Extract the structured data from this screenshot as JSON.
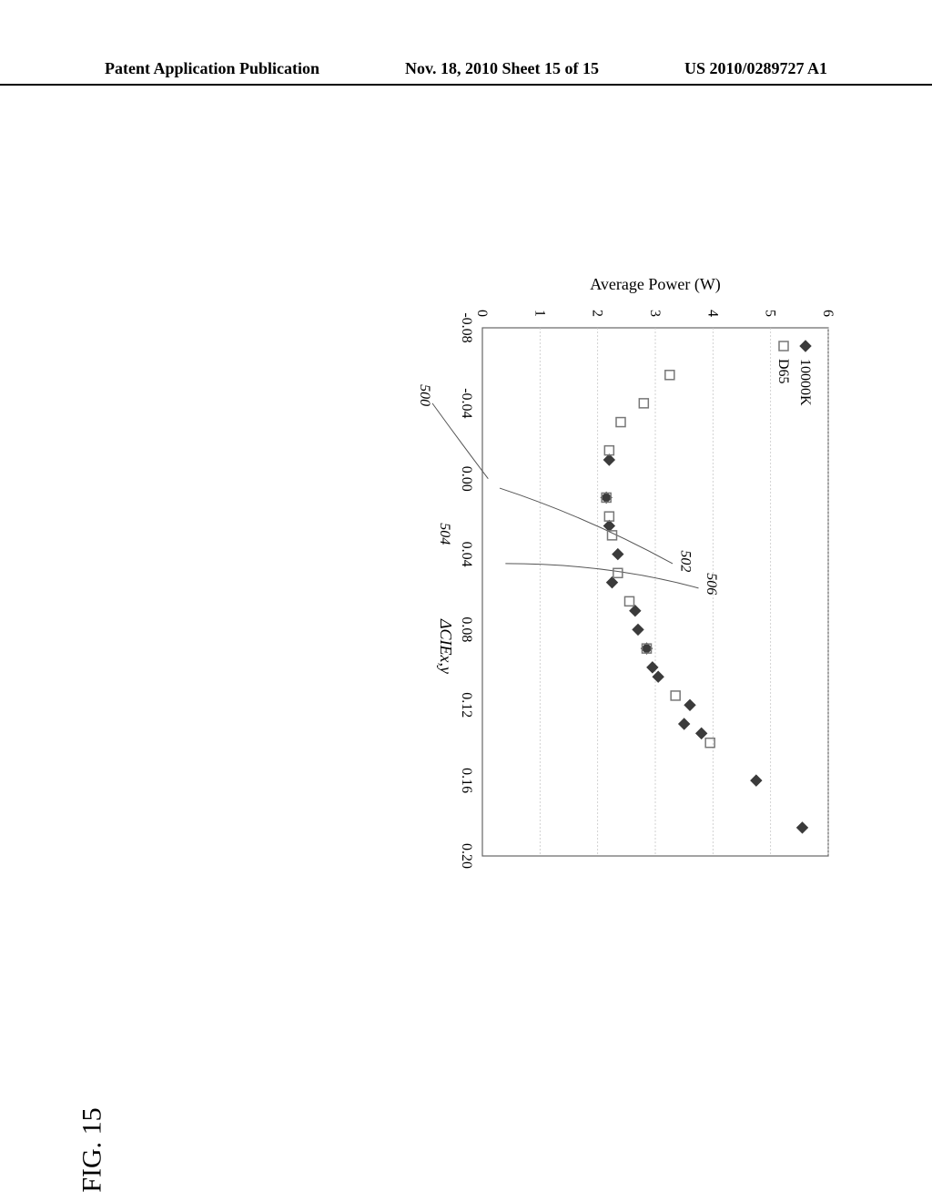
{
  "header": {
    "left": "Patent Application Publication",
    "center": "Nov. 18, 2010  Sheet 15 of 15",
    "right": "US 2010/0289727 A1"
  },
  "figure_label": "FIG. 15",
  "chart": {
    "type": "scatter",
    "xlabel": "ΔCIEx,y",
    "ylabel": "Average Power (W)",
    "xlim": [
      -0.08,
      0.2
    ],
    "ylim": [
      0,
      6
    ],
    "xticks": [
      -0.08,
      -0.04,
      0.0,
      0.04,
      0.08,
      0.12,
      0.16,
      0.2
    ],
    "yticks": [
      0,
      1,
      2,
      3,
      4,
      5,
      6
    ],
    "background_color": "#ffffff",
    "grid_color": "#c7c7c7",
    "border_color": "#666666",
    "tick_fontsize": 16,
    "label_fontsize": 18,
    "series": [
      {
        "name": "10000K",
        "marker": "diamond",
        "color": "#3b3b3b",
        "points": [
          [
            -0.01,
            2.2
          ],
          [
            0.01,
            2.15
          ],
          [
            0.025,
            2.2
          ],
          [
            0.04,
            2.35
          ],
          [
            0.055,
            2.25
          ],
          [
            0.07,
            2.65
          ],
          [
            0.08,
            2.7
          ],
          [
            0.09,
            2.85
          ],
          [
            0.1,
            2.95
          ],
          [
            0.105,
            3.05
          ],
          [
            0.12,
            3.6
          ],
          [
            0.13,
            3.5
          ],
          [
            0.135,
            3.8
          ],
          [
            0.16,
            4.75
          ],
          [
            0.185,
            5.55
          ]
        ]
      },
      {
        "name": "D65",
        "marker": "square",
        "color": "#777777",
        "points": [
          [
            -0.055,
            3.25
          ],
          [
            -0.04,
            2.8
          ],
          [
            -0.03,
            2.4
          ],
          [
            -0.015,
            2.2
          ],
          [
            0.01,
            2.15
          ],
          [
            0.02,
            2.2
          ],
          [
            0.03,
            2.25
          ],
          [
            0.05,
            2.35
          ],
          [
            0.065,
            2.55
          ],
          [
            0.09,
            2.85
          ],
          [
            0.115,
            3.35
          ],
          [
            0.14,
            3.95
          ]
        ]
      }
    ],
    "annotations": [
      {
        "label": "500",
        "curve_end_x": -0.02,
        "curve_end_y": 0.02
      },
      {
        "label": "502",
        "curve_end_x": 0.045,
        "curve_end_y": 0.3
      },
      {
        "label": "504",
        "curve_end_x": 0.04,
        "curve_end_y": -0.6
      },
      {
        "label": "506",
        "curve_end_x": 0.045,
        "curve_end_y": 2.6
      }
    ],
    "annotation_curve_color": "#555555"
  }
}
